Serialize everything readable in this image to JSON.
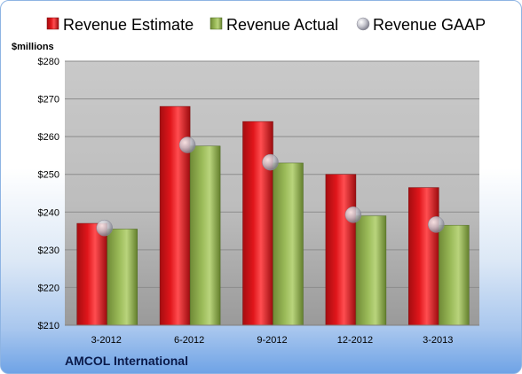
{
  "chart_data": {
    "type": "bar",
    "title": "",
    "company": "AMCOL International",
    "ylabel": "$millions",
    "categories": [
      "3-2012",
      "6-2012",
      "9-2012",
      "12-2012",
      "3-2013"
    ],
    "ylim": [
      210,
      280
    ],
    "yticks": [
      210,
      220,
      230,
      240,
      250,
      260,
      270,
      280
    ],
    "ytick_labels": [
      "$210",
      "$220",
      "$230",
      "$240",
      "$250",
      "$260",
      "$270",
      "$280"
    ],
    "grid": true,
    "legend_position": "top",
    "series": [
      {
        "name": "Revenue Estimate",
        "kind": "bar",
        "color": "#e0161b",
        "values": [
          237,
          268,
          264,
          250,
          246.5
        ]
      },
      {
        "name": "Revenue Actual",
        "kind": "bar",
        "color": "#9bbb59",
        "values": [
          235.5,
          257.5,
          253,
          239,
          236.5
        ]
      },
      {
        "name": "Revenue GAAP",
        "kind": "marker",
        "color": "#c0c0c8",
        "values": [
          235.8,
          257.8,
          253.2,
          239.3,
          236.7
        ]
      }
    ]
  }
}
